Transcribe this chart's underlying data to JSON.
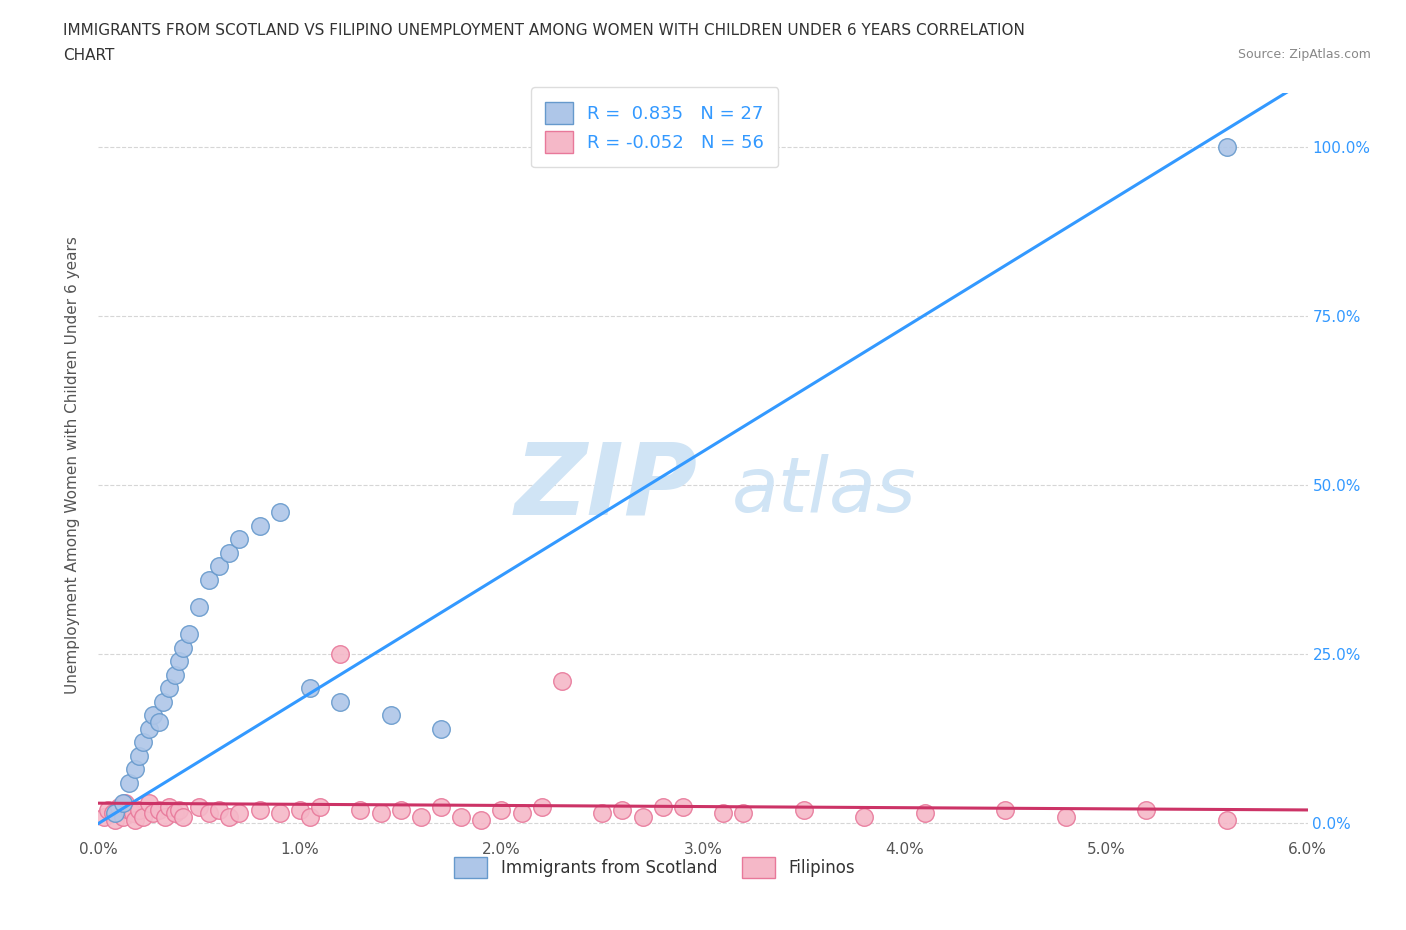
{
  "title_line1": "IMMIGRANTS FROM SCOTLAND VS FILIPINO UNEMPLOYMENT AMONG WOMEN WITH CHILDREN UNDER 6 YEARS CORRELATION",
  "title_line2": "CHART",
  "source_text": "Source: ZipAtlas.com",
  "ylabel": "Unemployment Among Women with Children Under 6 years",
  "xlim": [
    0.0,
    6.0
  ],
  "ylim": [
    -2.0,
    108.0
  ],
  "xtick_labels": [
    "0.0%",
    "1.0%",
    "2.0%",
    "3.0%",
    "4.0%",
    "5.0%",
    "6.0%"
  ],
  "xtick_vals": [
    0.0,
    1.0,
    2.0,
    3.0,
    4.0,
    5.0,
    6.0
  ],
  "ytick_labels": [
    "0.0%",
    "25.0%",
    "50.0%",
    "75.0%",
    "100.0%"
  ],
  "ytick_vals": [
    0.0,
    25.0,
    50.0,
    75.0,
    100.0
  ],
  "scotland_color": "#aec6e8",
  "scotland_edge_color": "#6699cc",
  "filipino_color": "#f5b8c8",
  "filipino_edge_color": "#e8789a",
  "trend_scotland_color": "#3399ff",
  "trend_filipino_color": "#cc3366",
  "watermark_color": "#d0e4f5",
  "scotland_R": 0.835,
  "scotland_N": 27,
  "filipino_R": -0.052,
  "filipino_N": 56,
  "legend_label1": "Immigrants from Scotland",
  "legend_label2": "Filipinos",
  "legend_r_color": "#3399ff",
  "right_tick_color": "#3399ff",
  "scotland_x": [
    0.08,
    0.12,
    0.15,
    0.18,
    0.2,
    0.22,
    0.25,
    0.27,
    0.3,
    0.32,
    0.35,
    0.38,
    0.4,
    0.42,
    0.45,
    0.5,
    0.55,
    0.6,
    0.65,
    0.7,
    0.8,
    0.9,
    1.05,
    1.2,
    1.45,
    1.7,
    5.6
  ],
  "scotland_y": [
    1.5,
    3.0,
    6.0,
    8.0,
    10.0,
    12.0,
    14.0,
    16.0,
    15.0,
    18.0,
    20.0,
    22.0,
    24.0,
    26.0,
    28.0,
    32.0,
    36.0,
    38.0,
    40.0,
    42.0,
    44.0,
    46.0,
    20.0,
    18.0,
    16.0,
    14.0,
    100.0
  ],
  "filipino_x": [
    0.03,
    0.05,
    0.07,
    0.08,
    0.1,
    0.12,
    0.13,
    0.15,
    0.17,
    0.18,
    0.2,
    0.22,
    0.25,
    0.27,
    0.3,
    0.33,
    0.35,
    0.38,
    0.4,
    0.42,
    0.5,
    0.55,
    0.6,
    0.65,
    0.7,
    0.8,
    0.9,
    1.0,
    1.05,
    1.1,
    1.2,
    1.3,
    1.4,
    1.5,
    1.6,
    1.7,
    1.8,
    1.9,
    2.0,
    2.1,
    2.2,
    2.3,
    2.5,
    2.6,
    2.7,
    2.8,
    3.2,
    3.5,
    3.8,
    4.1,
    4.5,
    4.8,
    5.2,
    5.6,
    2.9,
    3.1
  ],
  "filipino_y": [
    1.0,
    2.0,
    1.5,
    0.5,
    2.5,
    1.0,
    3.0,
    2.0,
    1.5,
    0.5,
    2.0,
    1.0,
    3.0,
    1.5,
    2.0,
    1.0,
    2.5,
    1.5,
    2.0,
    1.0,
    2.5,
    1.5,
    2.0,
    1.0,
    1.5,
    2.0,
    1.5,
    2.0,
    1.0,
    2.5,
    25.0,
    2.0,
    1.5,
    2.0,
    1.0,
    2.5,
    1.0,
    0.5,
    2.0,
    1.5,
    2.5,
    21.0,
    1.5,
    2.0,
    1.0,
    2.5,
    1.5,
    2.0,
    1.0,
    1.5,
    2.0,
    1.0,
    2.0,
    0.5,
    2.5,
    1.5
  ],
  "trend_scotland_x0": 0.0,
  "trend_scotland_y0": 0.0,
  "trend_scotland_x1": 6.0,
  "trend_scotland_y1": 110.0,
  "trend_filipino_x0": 0.0,
  "trend_filipino_y0": 3.0,
  "trend_filipino_x1": 6.0,
  "trend_filipino_y1": 2.0
}
